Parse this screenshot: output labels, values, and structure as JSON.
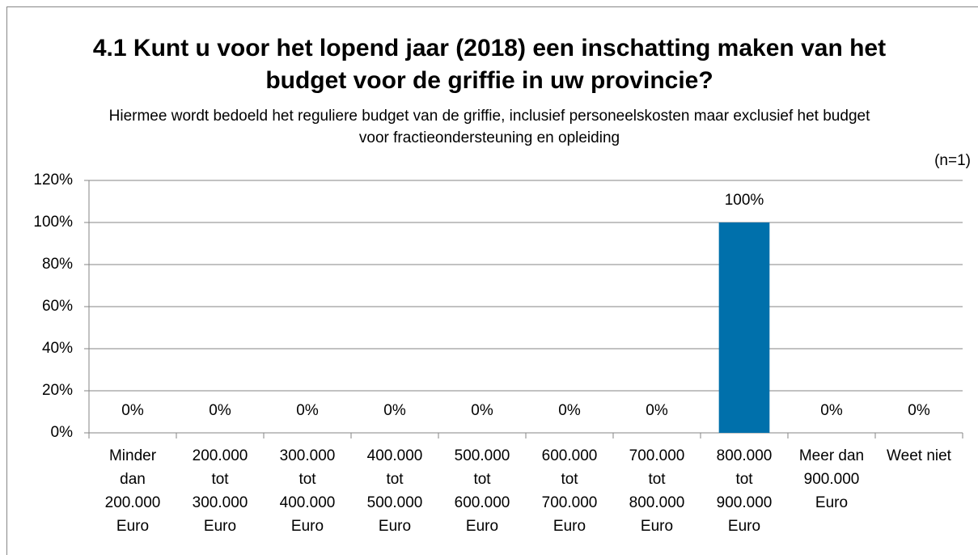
{
  "chart_data": {
    "type": "bar",
    "title": "4.1 Kunt u voor het lopend jaar (2018) een inschatting maken van het budget voor de griffie in uw provincie?",
    "subtitle": "Hiermee wordt bedoeld het reguliere budget van de griffie, inclusief personeelskosten maar exclusief het budget voor fractieondersteuning en opleiding",
    "annotation": "(n=1)",
    "categories": [
      "Minder dan 200.000 Euro",
      "200.000 tot 300.000 Euro",
      "300.000 tot 400.000 Euro",
      "400.000 tot 500.000 Euro",
      "500.000 tot 600.000 Euro",
      "600.000 tot 700.000 Euro",
      "700.000 tot 800.000 Euro",
      "800.000 tot 900.000 Euro",
      "Meer dan 900.000 Euro",
      "Weet niet"
    ],
    "values": [
      0,
      0,
      0,
      0,
      0,
      0,
      0,
      100,
      0,
      0
    ],
    "value_labels": [
      "0%",
      "0%",
      "0%",
      "0%",
      "0%",
      "0%",
      "0%",
      "100%",
      "0%",
      "0%"
    ],
    "color": "#0070ab",
    "ylim": [
      0,
      120
    ],
    "yticks": [
      {
        "value": 0,
        "label": "0%"
      },
      {
        "value": 20,
        "label": "20%"
      },
      {
        "value": 40,
        "label": "40%"
      },
      {
        "value": 60,
        "label": "60%"
      },
      {
        "value": 80,
        "label": "80%"
      },
      {
        "value": 100,
        "label": "100%"
      },
      {
        "value": 120,
        "label": "120%"
      }
    ],
    "grid": true
  }
}
